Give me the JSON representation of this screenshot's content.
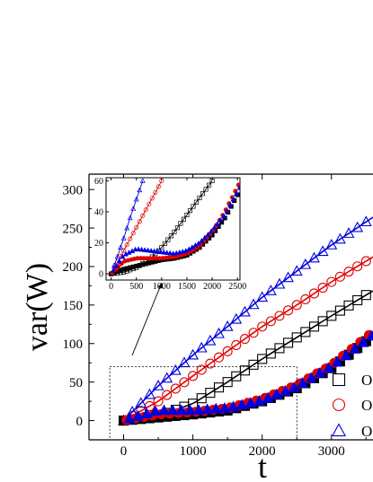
{
  "chart_data": [
    {
      "type": "scatter",
      "xlabel": "t",
      "ylabel": "var(W)",
      "xlim": [
        -500,
        3600
      ],
      "ylim": [
        -25,
        320
      ],
      "xticks": [
        0,
        1000,
        2000,
        3000
      ],
      "yticks": [
        0,
        50,
        100,
        150,
        200,
        250,
        300
      ],
      "legend_placement": "bottom-right (cut off at right edge)",
      "legend_entries_visible_text": [
        "O",
        "O",
        "O"
      ],
      "series": [
        {
          "marker": "open-square",
          "color": "#000000",
          "x": [
            0,
            500,
            1000,
            1500,
            2000,
            2500,
            3000,
            3500
          ],
          "y": [
            0,
            6,
            22,
            50,
            80,
            108,
            136,
            163
          ]
        },
        {
          "marker": "open-circle",
          "color": "#e00000",
          "x": [
            0,
            500,
            1000,
            1500,
            2000,
            2500,
            3000,
            3500
          ],
          "y": [
            0,
            25,
            58,
            90,
            122,
            150,
            180,
            207
          ]
        },
        {
          "marker": "open-triangle",
          "color": "#0000e0",
          "x": [
            0,
            500,
            1000,
            1500,
            2000,
            2500,
            3000,
            3500
          ],
          "y": [
            0,
            45,
            85,
            122,
            160,
            194,
            228,
            258
          ]
        },
        {
          "marker": "filled-square",
          "color": "#000000",
          "x": [
            0,
            500,
            1000,
            1500,
            2000,
            2500,
            3000,
            3500
          ],
          "y": [
            0,
            4,
            8,
            13,
            25,
            42,
            68,
            103
          ]
        },
        {
          "marker": "filled-circle",
          "color": "#e00000",
          "x": [
            0,
            500,
            1000,
            1500,
            2000,
            2500,
            3000,
            3500
          ],
          "y": [
            0,
            8,
            11,
            16,
            28,
            46,
            72,
            108
          ]
        },
        {
          "marker": "filled-triangle",
          "color": "#0000e0",
          "x": [
            0,
            500,
            1000,
            1500,
            2000,
            2500,
            3000,
            3500
          ],
          "y": [
            0,
            13,
            13,
            16,
            26,
            44,
            70,
            104
          ]
        }
      ],
      "zoom_box": {
        "x": [
          -200,
          2500
        ],
        "y": [
          -25,
          70
        ]
      }
    },
    {
      "type": "scatter",
      "name": "inset",
      "xlim": [
        -100,
        2550
      ],
      "ylim": [
        -4,
        62
      ],
      "xticks": [
        0,
        500,
        1000,
        1500,
        2000,
        2500
      ],
      "yticks": [
        0,
        20,
        40,
        60
      ],
      "series": [
        {
          "marker": "open-square",
          "color": "#000000",
          "x": [
            0,
            250,
            500,
            750,
            1000,
            1250,
            1500,
            1750,
            2000
          ],
          "y": [
            0,
            1,
            4,
            9,
            17,
            27,
            38,
            49,
            60
          ]
        },
        {
          "marker": "open-circle",
          "color": "#e00000",
          "x": [
            0,
            200,
            400,
            600,
            800,
            1000
          ],
          "y": [
            0,
            12,
            24,
            36,
            48,
            60
          ]
        },
        {
          "marker": "open-triangle",
          "color": "#0000e0",
          "x": [
            0,
            125,
            250,
            375,
            500,
            625
          ],
          "y": [
            0,
            11,
            23,
            36,
            48,
            60
          ]
        },
        {
          "marker": "filled-square",
          "color": "#000000",
          "x": [
            0,
            250,
            500,
            750,
            1000,
            1250,
            1500,
            1750,
            2000,
            2250,
            2500
          ],
          "y": [
            0,
            3,
            5,
            7,
            9,
            10,
            12,
            17,
            25,
            36,
            51
          ]
        },
        {
          "marker": "filled-circle",
          "color": "#e00000",
          "x": [
            0,
            250,
            500,
            750,
            1000,
            1250,
            1500,
            1750,
            2000,
            2250,
            2500
          ],
          "y": [
            0,
            8,
            10,
            10,
            10,
            11,
            13,
            18,
            27,
            40,
            56
          ]
        },
        {
          "marker": "filled-triangle",
          "color": "#0000e0",
          "x": [
            0,
            250,
            500,
            750,
            1000,
            1250,
            1500,
            1750,
            2000,
            2250,
            2500
          ],
          "y": [
            0,
            12,
            16,
            15,
            14,
            13,
            15,
            20,
            28,
            38,
            53
          ]
        }
      ]
    }
  ]
}
